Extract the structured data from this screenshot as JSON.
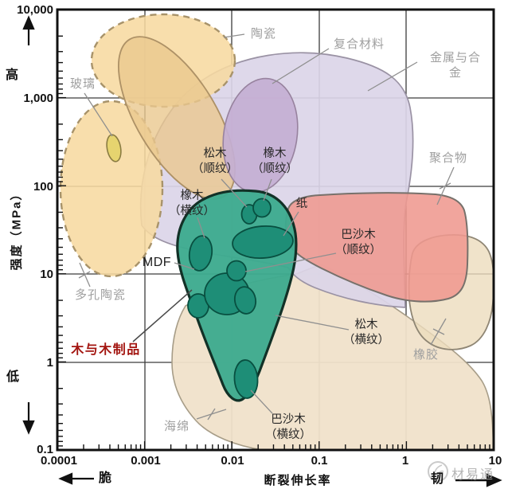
{
  "watermark": {
    "text": "材易通",
    "logo_icon": "sprout-circle-logo"
  },
  "chart_data": {
    "type": "area",
    "subtype": "ashby-material-property-chart",
    "title": "",
    "xlabel": "断裂伸长率",
    "ylabel": "强度（MPa）",
    "grid": true,
    "x_axis": {
      "scale": "log",
      "min": 0.0001,
      "max": 10,
      "tick_labels": [
        "0.0001",
        "0.001",
        "0.01",
        "0.1",
        "1",
        "10"
      ],
      "left_annotation": "脆",
      "right_annotation": "韧"
    },
    "y_axis": {
      "scale": "log",
      "min": 0.1,
      "max": 10000,
      "tick_labels": [
        "10,000",
        "1,000",
        "100",
        "10",
        "1",
        "0.1"
      ],
      "top_annotation": "高",
      "bottom_annotation": "低"
    },
    "regions": [
      {
        "id": "ceramics",
        "name": "陶瓷",
        "border": "dashed",
        "fill": "#f7d9a0",
        "label_color": "#9f9f9f",
        "x_range": [
          0.00028,
          0.01
        ],
        "y_range": [
          120,
          10000
        ]
      },
      {
        "id": "porous-ceramics",
        "name": "多孔陶瓷",
        "border": "dashed",
        "fill": "#f7d9a0",
        "label_color": "#9f9f9f",
        "x_range": [
          0.0001,
          0.0016
        ],
        "y_range": [
          9,
          900
        ]
      },
      {
        "id": "glass",
        "name": "玻璃",
        "border": "solid",
        "fill": "#e6d46f",
        "label_color": "#9f9f9f",
        "x_range": [
          0.00037,
          0.00054
        ],
        "y_range": [
          190,
          390
        ]
      },
      {
        "id": "metals-alloys",
        "name": "金属与合金",
        "border": "solid",
        "fill": "#dbd5e8",
        "label_color": "#9f9f9f",
        "x_range": [
          0.0009,
          1.1
        ],
        "y_range": [
          4,
          3500
        ]
      },
      {
        "id": "composites",
        "name": "复合材料",
        "border": "solid",
        "fill": "#c4aed3",
        "label_color": "#9f9f9f",
        "x_range": [
          0.008,
          0.056
        ],
        "y_range": [
          80,
          1700
        ]
      },
      {
        "id": "polymers",
        "name": "聚合物",
        "border": "solid",
        "fill": "#ef9890",
        "label_color": "#9f9f9f",
        "x_range": [
          0.04,
          5
        ],
        "y_range": [
          5,
          80
        ]
      },
      {
        "id": "rubber",
        "name": "橡胶",
        "border": "solid",
        "fill": "#ecdcbd",
        "label_color": "#9f9f9f",
        "x_range": [
          1,
          10
        ],
        "y_range": [
          1.4,
          27
        ]
      },
      {
        "id": "sponge",
        "name": "海绵",
        "border": "solid",
        "fill": "#f0e2ca",
        "label_color": "#9f9f9f",
        "x_range": [
          0.002,
          10
        ],
        "y_range": [
          0.1,
          13
        ]
      },
      {
        "id": "wood-products",
        "name": "木与木制品",
        "border": "solid",
        "fill": "#3dab8f",
        "label_color": "#a31510",
        "x_range": [
          0.0023,
          0.57
        ],
        "y_range": [
          0.35,
          90
        ]
      }
    ],
    "items": [
      {
        "id": "pine-along",
        "label": "松木\n（顺纹）",
        "x_range": [
          0.013,
          0.02
        ],
        "y_range": [
          38,
          62
        ]
      },
      {
        "id": "oak-along",
        "label": "橡木\n（顺纹）",
        "x_range": [
          0.017,
          0.027
        ],
        "y_range": [
          42,
          66
        ]
      },
      {
        "id": "oak-cross",
        "label": "橡木\n（横纹）",
        "x_range": [
          0.0035,
          0.0063
        ],
        "y_range": [
          11,
          27
        ]
      },
      {
        "id": "paper",
        "label": "纸",
        "x_range": [
          0.01,
          0.05
        ],
        "y_range": [
          15,
          35
        ]
      },
      {
        "id": "mdf",
        "label": "MDF",
        "x_range": [
          0.003,
          0.011
        ],
        "y_range": [
          2.9,
          8.5
        ]
      },
      {
        "id": "balsa-along",
        "label": "巴沙木\n（顺纹）",
        "x_range": [
          0.0088,
          0.015
        ],
        "y_range": [
          7.6,
          12.6
        ]
      },
      {
        "id": "pine-cross",
        "label": "松木\n（横纹）",
        "x_range": [
          0.008,
          0.016
        ],
        "y_range": [
          3.8,
          8.7
        ]
      },
      {
        "id": "balsa-cross",
        "label": "巴沙木\n（横纹）",
        "x_range": [
          0.011,
          0.02
        ],
        "y_range": [
          0.46,
          1.26
        ]
      }
    ]
  }
}
